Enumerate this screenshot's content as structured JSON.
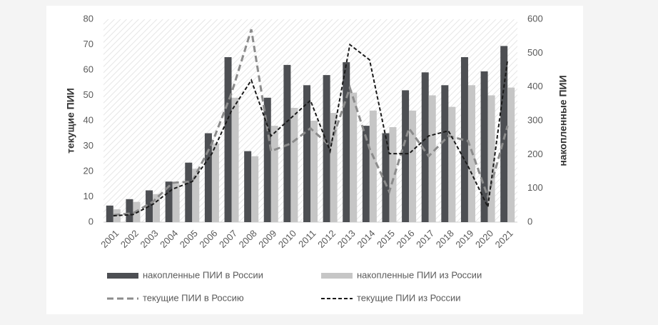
{
  "chart_data": {
    "type": "bar-line",
    "categories": [
      "2001",
      "2002",
      "2003",
      "2004",
      "2005",
      "2006",
      "2007",
      "2008",
      "2009",
      "2010",
      "2011",
      "2012",
      "2013",
      "2014",
      "2015",
      "2016",
      "2017",
      "2018",
      "2019",
      "2020",
      "2021"
    ],
    "ylabel": "текущие ПИИ",
    "y2label": "накопленные ПИИ",
    "ylim": [
      0,
      80
    ],
    "yticks": [
      0,
      10,
      20,
      30,
      40,
      50,
      60,
      70,
      80
    ],
    "y2lim": [
      0,
      600
    ],
    "y2ticks": [
      0,
      100,
      200,
      300,
      400,
      500,
      600
    ],
    "series": [
      {
        "name": "накопленные ПИИ в России",
        "kind": "bar",
        "axis": "y2",
        "color": "#4d4f53",
        "values": [
          49,
          68,
          94,
          120,
          176,
          263,
          488,
          210,
          368,
          465,
          405,
          435,
          473,
          285,
          263,
          390,
          443,
          405,
          488,
          446,
          521
        ]
      },
      {
        "name": "накопленные ПИИ из России",
        "kind": "bar",
        "axis": "y2",
        "color": "#c6c6c6",
        "values": [
          38,
          60,
          83,
          113,
          158,
          233,
          368,
          195,
          285,
          338,
          300,
          323,
          383,
          330,
          281,
          330,
          375,
          341,
          405,
          375,
          398
        ]
      },
      {
        "name": "текущие ПИИ в Россию",
        "kind": "line",
        "color": "#8c8c8c",
        "values": [
          2.8,
          3.5,
          8,
          15.5,
          16,
          31,
          51,
          76,
          28,
          31,
          37,
          30,
          53,
          29,
          12,
          37,
          26,
          34,
          32,
          10,
          38
        ]
      },
      {
        "name": "текущие ПИИ из России",
        "kind": "line",
        "color": "#1a1a1a",
        "values": [
          2.5,
          3,
          7,
          13,
          16,
          27,
          44,
          56,
          34,
          41,
          48,
          28,
          70,
          64,
          27,
          27,
          34,
          36,
          22,
          6,
          64
        ]
      }
    ]
  }
}
